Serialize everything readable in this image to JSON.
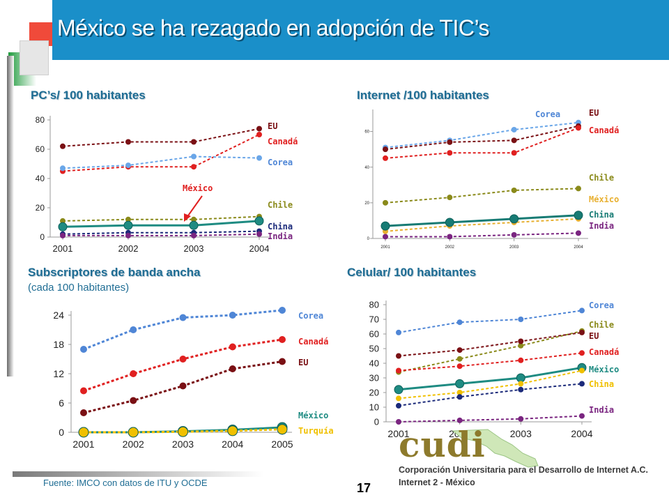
{
  "title": "México se ha rezagado en adopción de TIC’s",
  "footer": {
    "source": "Fuente: IMCO con datos de ITU y OCDE",
    "page": "17"
  },
  "logo": {
    "word": "cudi",
    "line1": "Corporación Universitaria para el Desarrollo de Internet A.C.",
    "line2": "Internet 2 - México"
  },
  "colors": {
    "title_bar": "#1a8fc9",
    "chart_title": "#1f6d94",
    "EU": "#7a1014",
    "Canada": "#e02020",
    "Corea": "#4f86d6",
    "Chile": "#8a8a1a",
    "China": "#177b74",
    "India": "#7a2580",
    "Mexico": "#1e8b82",
    "Turquia": "#f0c000"
  },
  "chart_data": [
    {
      "id": "pcs",
      "type": "line",
      "title": "PC’s/ 100 habitantes",
      "x": [
        "2001",
        "2002",
        "2003",
        "2004"
      ],
      "ylim": [
        0,
        80
      ],
      "yticks": [
        "0",
        "20",
        "40",
        "60",
        "80"
      ],
      "series": [
        {
          "name": "EU",
          "color": "#7a1014",
          "values": [
            62,
            65,
            65,
            74
          ]
        },
        {
          "name": "Canadá",
          "color": "#e02020",
          "values": [
            45,
            48,
            48,
            70
          ]
        },
        {
          "name": "Corea",
          "color": "#6aa6e8",
          "values": [
            47,
            49,
            55,
            54
          ]
        },
        {
          "name": "Chile",
          "color": "#8a8a1a",
          "values": [
            11,
            12,
            12,
            14
          ]
        },
        {
          "name": "México",
          "color": "#1e8b82",
          "values": [
            7,
            8,
            8,
            11
          ]
        },
        {
          "name": "China",
          "color": "#1b2a7a",
          "values": [
            2,
            3,
            3,
            4
          ]
        },
        {
          "name": "India",
          "color": "#7a2580",
          "values": [
            1,
            1,
            1,
            2
          ]
        }
      ],
      "annotation": "México"
    },
    {
      "id": "internet",
      "type": "line",
      "title": "Internet /100 habitantes",
      "x": [
        "2001",
        "2002",
        "2003",
        "2004"
      ],
      "ylim": [
        0,
        70
      ],
      "yticks": [
        "0",
        "20",
        "40",
        "60"
      ],
      "series": [
        {
          "name": "Corea",
          "color": "#6aa6e8",
          "values": [
            51,
            55,
            61,
            65
          ]
        },
        {
          "name": "EU",
          "color": "#7a1014",
          "values": [
            50,
            54,
            55,
            63
          ]
        },
        {
          "name": "Canadá",
          "color": "#e02020",
          "values": [
            45,
            48,
            48,
            62
          ]
        },
        {
          "name": "Chile",
          "color": "#8a8a1a",
          "values": [
            20,
            23,
            27,
            28
          ]
        },
        {
          "name": "México",
          "color": "#e8b030",
          "values": [
            4,
            7,
            9,
            11
          ]
        },
        {
          "name": "China",
          "color": "#177b74",
          "values": [
            7,
            9,
            11,
            13
          ]
        },
        {
          "name": "India",
          "color": "#7a2580",
          "values": [
            1,
            1,
            2,
            3
          ]
        }
      ]
    },
    {
      "id": "broadband",
      "type": "line",
      "title": "Subscriptores de banda ancha",
      "subtitle": "(cada 100 habitantes)",
      "x": [
        "2001",
        "2002",
        "2003",
        "2004",
        "2005"
      ],
      "ylim": [
        0,
        25
      ],
      "yticks": [
        "0",
        "6",
        "12",
        "18",
        "24"
      ],
      "series": [
        {
          "name": "Corea",
          "color": "#4f86d6",
          "values": [
            17,
            21,
            23.5,
            24,
            25
          ]
        },
        {
          "name": "Canadá",
          "color": "#e02020",
          "values": [
            8.5,
            12,
            15,
            17.5,
            19
          ]
        },
        {
          "name": "EU",
          "color": "#7a1014",
          "values": [
            4,
            6.5,
            9.5,
            13,
            14.5
          ]
        },
        {
          "name": "México",
          "color": "#1e8b82",
          "values": [
            0,
            0,
            0.2,
            0.5,
            1
          ]
        },
        {
          "name": "Turquía",
          "color": "#f0c000",
          "values": [
            0,
            0,
            0.1,
            0.3,
            0.6
          ]
        }
      ]
    },
    {
      "id": "cellular",
      "type": "line",
      "title": "Celular/ 100 habitantes",
      "x": [
        "2001",
        "2002",
        "2003",
        "2004"
      ],
      "ylim": [
        0,
        80
      ],
      "yticks": [
        "0",
        "10",
        "20",
        "30",
        "40",
        "50",
        "60",
        "70",
        "80"
      ],
      "series": [
        {
          "name": "Corea",
          "color": "#4f86d6",
          "values": [
            61,
            68,
            70,
            76
          ]
        },
        {
          "name": "Chile",
          "color": "#8a8a1a",
          "values": [
            34,
            43,
            52,
            62
          ]
        },
        {
          "name": "EU",
          "color": "#7a1014",
          "values": [
            45,
            49,
            55,
            61
          ]
        },
        {
          "name": "Canadá",
          "color": "#e02020",
          "values": [
            35,
            38,
            42,
            47
          ]
        },
        {
          "name": "México",
          "color": "#1e8b82",
          "values": [
            22,
            26,
            30,
            37
          ]
        },
        {
          "name": "China",
          "color": "#f0c000",
          "values": [
            16,
            20,
            26,
            35
          ]
        },
        {
          "name": "India",
          "color": "#7a2580",
          "values": [
            0,
            1,
            2,
            4
          ]
        },
        {
          "name": "",
          "color": "#1b2a7a",
          "values": [
            11,
            17,
            22,
            26
          ]
        }
      ],
      "labels": [
        "Corea",
        "Chile",
        "EU",
        "Canadá",
        "México",
        "China",
        "India"
      ]
    }
  ]
}
